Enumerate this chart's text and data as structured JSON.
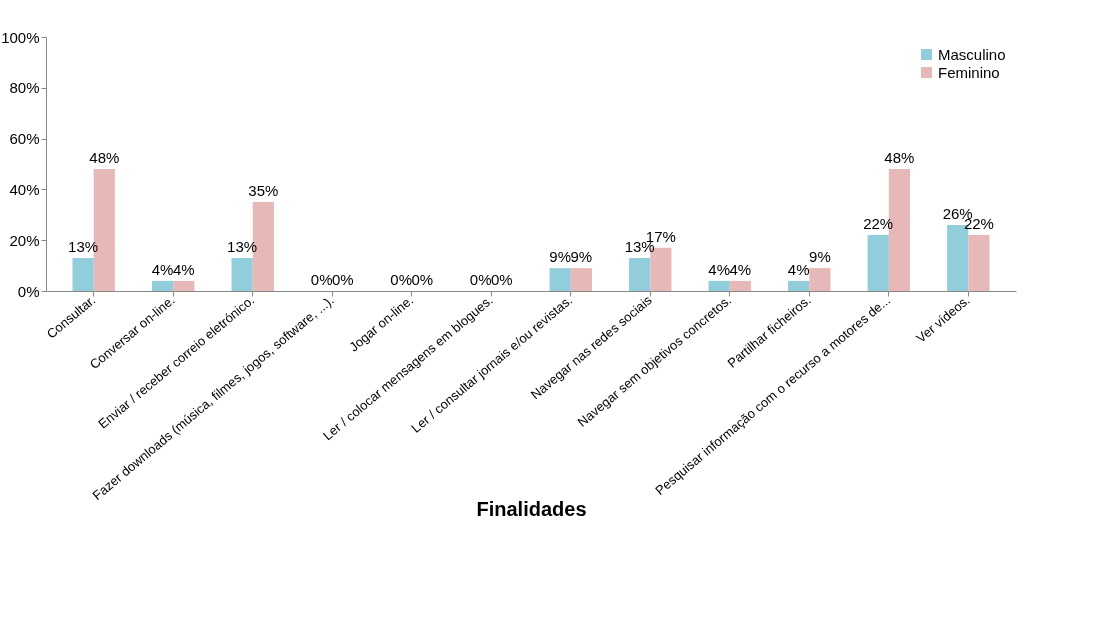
{
  "chart_data": {
    "type": "bar",
    "xlabel": "Finalidades",
    "categories": [
      "Consultar.",
      "Conversar on-line.",
      "Enviar / receber correio eletrónico.",
      "Fazer downloads (música, filmes, jogos, software, ...).",
      "Jogar on-line.",
      "Ler / colocar mensagens em blogues.",
      "Ler / consultar jornais e/ou revistas.",
      "Navegar nas redes sociais",
      "Navegar sem objetivos concretos.",
      "Partilhar ficheiros.",
      "Pesquisar informação com o recurso a motores de...",
      "Ver vídeos."
    ],
    "series": [
      {
        "name": "Masculino",
        "color": "#92cddc",
        "values": [
          13,
          4,
          13,
          0,
          0,
          0,
          9,
          13,
          4,
          4,
          22,
          26
        ],
        "value_labels": [
          "13%",
          "4%",
          "13%",
          "0%",
          "0%",
          "0%",
          "9%",
          "13%",
          "4%",
          "4%",
          "22%",
          "26%"
        ]
      },
      {
        "name": "Feminino",
        "color": "#e6b9b8",
        "values": [
          48,
          4,
          35,
          0,
          0,
          0,
          9,
          17,
          4,
          9,
          48,
          22
        ],
        "value_labels": [
          "48%",
          "4%",
          "35%",
          "0%",
          "0%",
          "0%",
          "9%",
          "17%",
          "4%",
          "9%",
          "48%",
          "22%"
        ]
      }
    ],
    "ylim": [
      0,
      100
    ],
    "yticks": [
      {
        "value": 0,
        "label": "0%"
      },
      {
        "value": 20,
        "label": "20%"
      },
      {
        "value": 40,
        "label": "40%"
      },
      {
        "value": 60,
        "label": "60%"
      },
      {
        "value": 80,
        "label": "80%"
      },
      {
        "value": 100,
        "label": "100%"
      }
    ],
    "grid": false,
    "legend": "top right"
  }
}
